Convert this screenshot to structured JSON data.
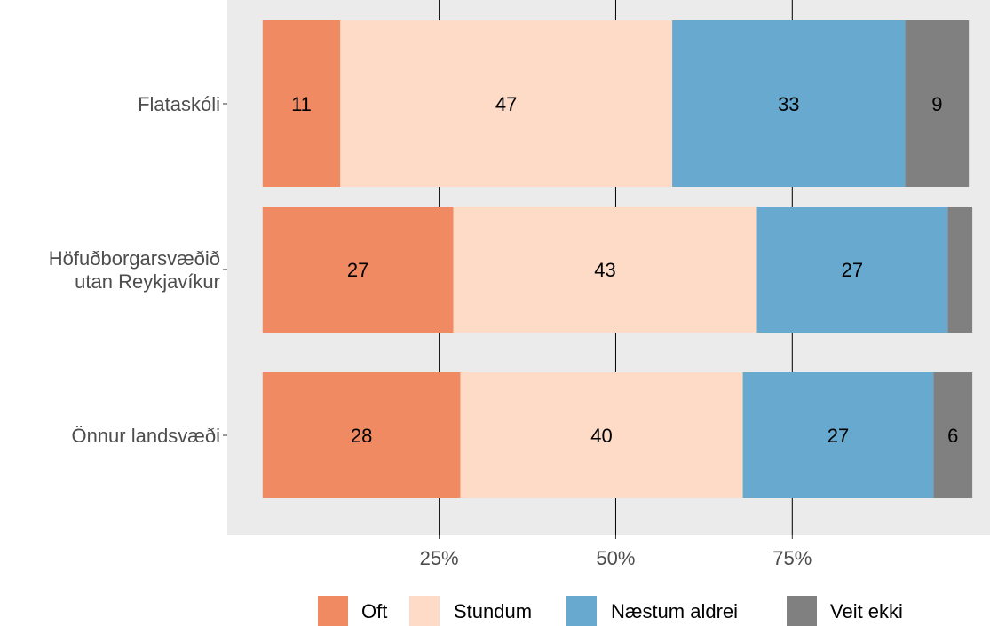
{
  "chart_data": {
    "type": "bar",
    "orientation": "horizontal",
    "stacked": true,
    "categories": [
      "Flataskóli",
      "Höfuðborgarsvæðið utan Reykjavíkur",
      "Önnur landsvæði"
    ],
    "category_label_lines": [
      [
        "Flataskóli"
      ],
      [
        "Höfuðborgarsvæðið",
        "utan Reykjavíkur"
      ],
      [
        "Önnur landsvæði"
      ]
    ],
    "series": [
      {
        "name": "Oft",
        "color": "#ef8a62",
        "values": [
          11,
          27,
          28
        ],
        "labels": [
          "11",
          "27",
          "28"
        ]
      },
      {
        "name": "Stundum",
        "color": "#fddbc7",
        "values": [
          47,
          43,
          40
        ],
        "labels": [
          "47",
          "43",
          "40"
        ]
      },
      {
        "name": "Næstum aldrei",
        "color": "#67a9cf",
        "values": [
          33,
          27,
          27
        ],
        "labels": [
          "33",
          "27",
          "27"
        ]
      },
      {
        "name": "Veit ekki",
        "color": "#808080",
        "values": [
          9,
          3.5,
          5.5
        ],
        "labels": [
          "9",
          "",
          "6"
        ]
      }
    ],
    "x_ticks": [
      25,
      50,
      75
    ],
    "x_tick_labels": [
      "25%",
      "50%",
      "75%"
    ],
    "xlim": [
      -5,
      103
    ],
    "xlabel": "",
    "ylabel": "",
    "grid": "vertical-major",
    "panel_background": "#ebebeb",
    "legend_position": "bottom"
  }
}
